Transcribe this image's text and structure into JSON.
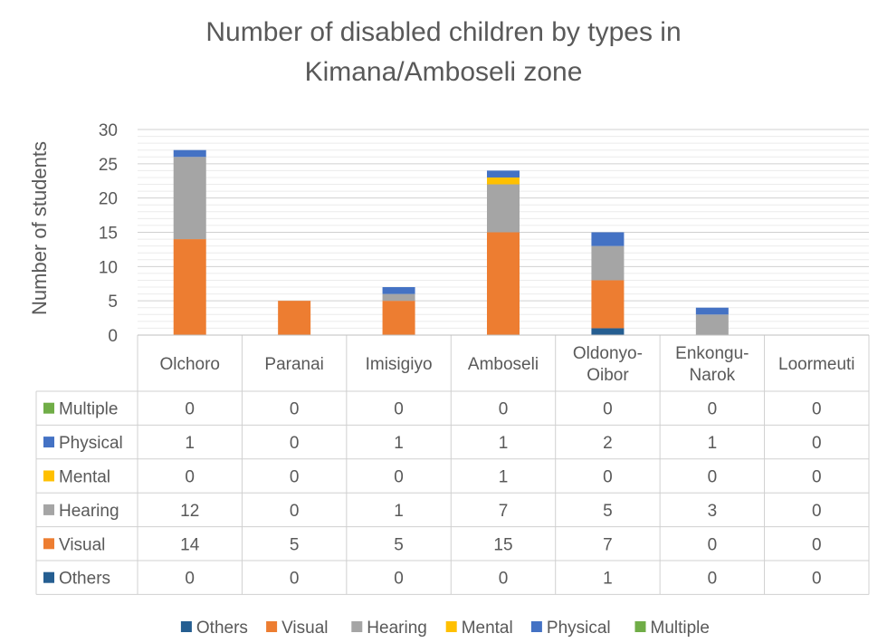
{
  "chart_data": {
    "type": "bar",
    "stacked": true,
    "title_lines": [
      "Number of disabled children by types in",
      "Kimana/Amboseli zone"
    ],
    "ylabel": "Number of students",
    "ylim": [
      0,
      30
    ],
    "yticks": [
      0,
      5,
      10,
      15,
      20,
      25,
      30
    ],
    "categories": [
      [
        "Olchoro"
      ],
      [
        "Paranai"
      ],
      [
        "Imisigiyo"
      ],
      [
        "Amboseli"
      ],
      [
        "Oldonyo-",
        "Oibor"
      ],
      [
        "Enkongu-",
        "Narok"
      ],
      [
        "Loormeuti"
      ]
    ],
    "series": [
      {
        "name": "Others",
        "color": "#255E91",
        "values": [
          0,
          0,
          0,
          0,
          1,
          0,
          0
        ]
      },
      {
        "name": "Visual",
        "color": "#ED7D31",
        "values": [
          14,
          5,
          5,
          15,
          7,
          0,
          0
        ]
      },
      {
        "name": "Hearing",
        "color": "#A5A5A5",
        "values": [
          12,
          0,
          1,
          7,
          5,
          3,
          0
        ]
      },
      {
        "name": "Mental",
        "color": "#FFC000",
        "values": [
          0,
          0,
          0,
          1,
          0,
          0,
          0
        ]
      },
      {
        "name": "Physical",
        "color": "#4472C4",
        "values": [
          1,
          0,
          1,
          1,
          2,
          1,
          0
        ]
      },
      {
        "name": "Multiple",
        "color": "#70AD47",
        "values": [
          0,
          0,
          0,
          0,
          0,
          0,
          0
        ]
      }
    ],
    "table_row_order": [
      "Multiple",
      "Physical",
      "Mental",
      "Hearing",
      "Visual",
      "Others"
    ],
    "legend_order": [
      "Others",
      "Visual",
      "Hearing",
      "Mental",
      "Physical",
      "Multiple"
    ],
    "legend_position": "bottom",
    "grid": true,
    "data_table": true
  }
}
